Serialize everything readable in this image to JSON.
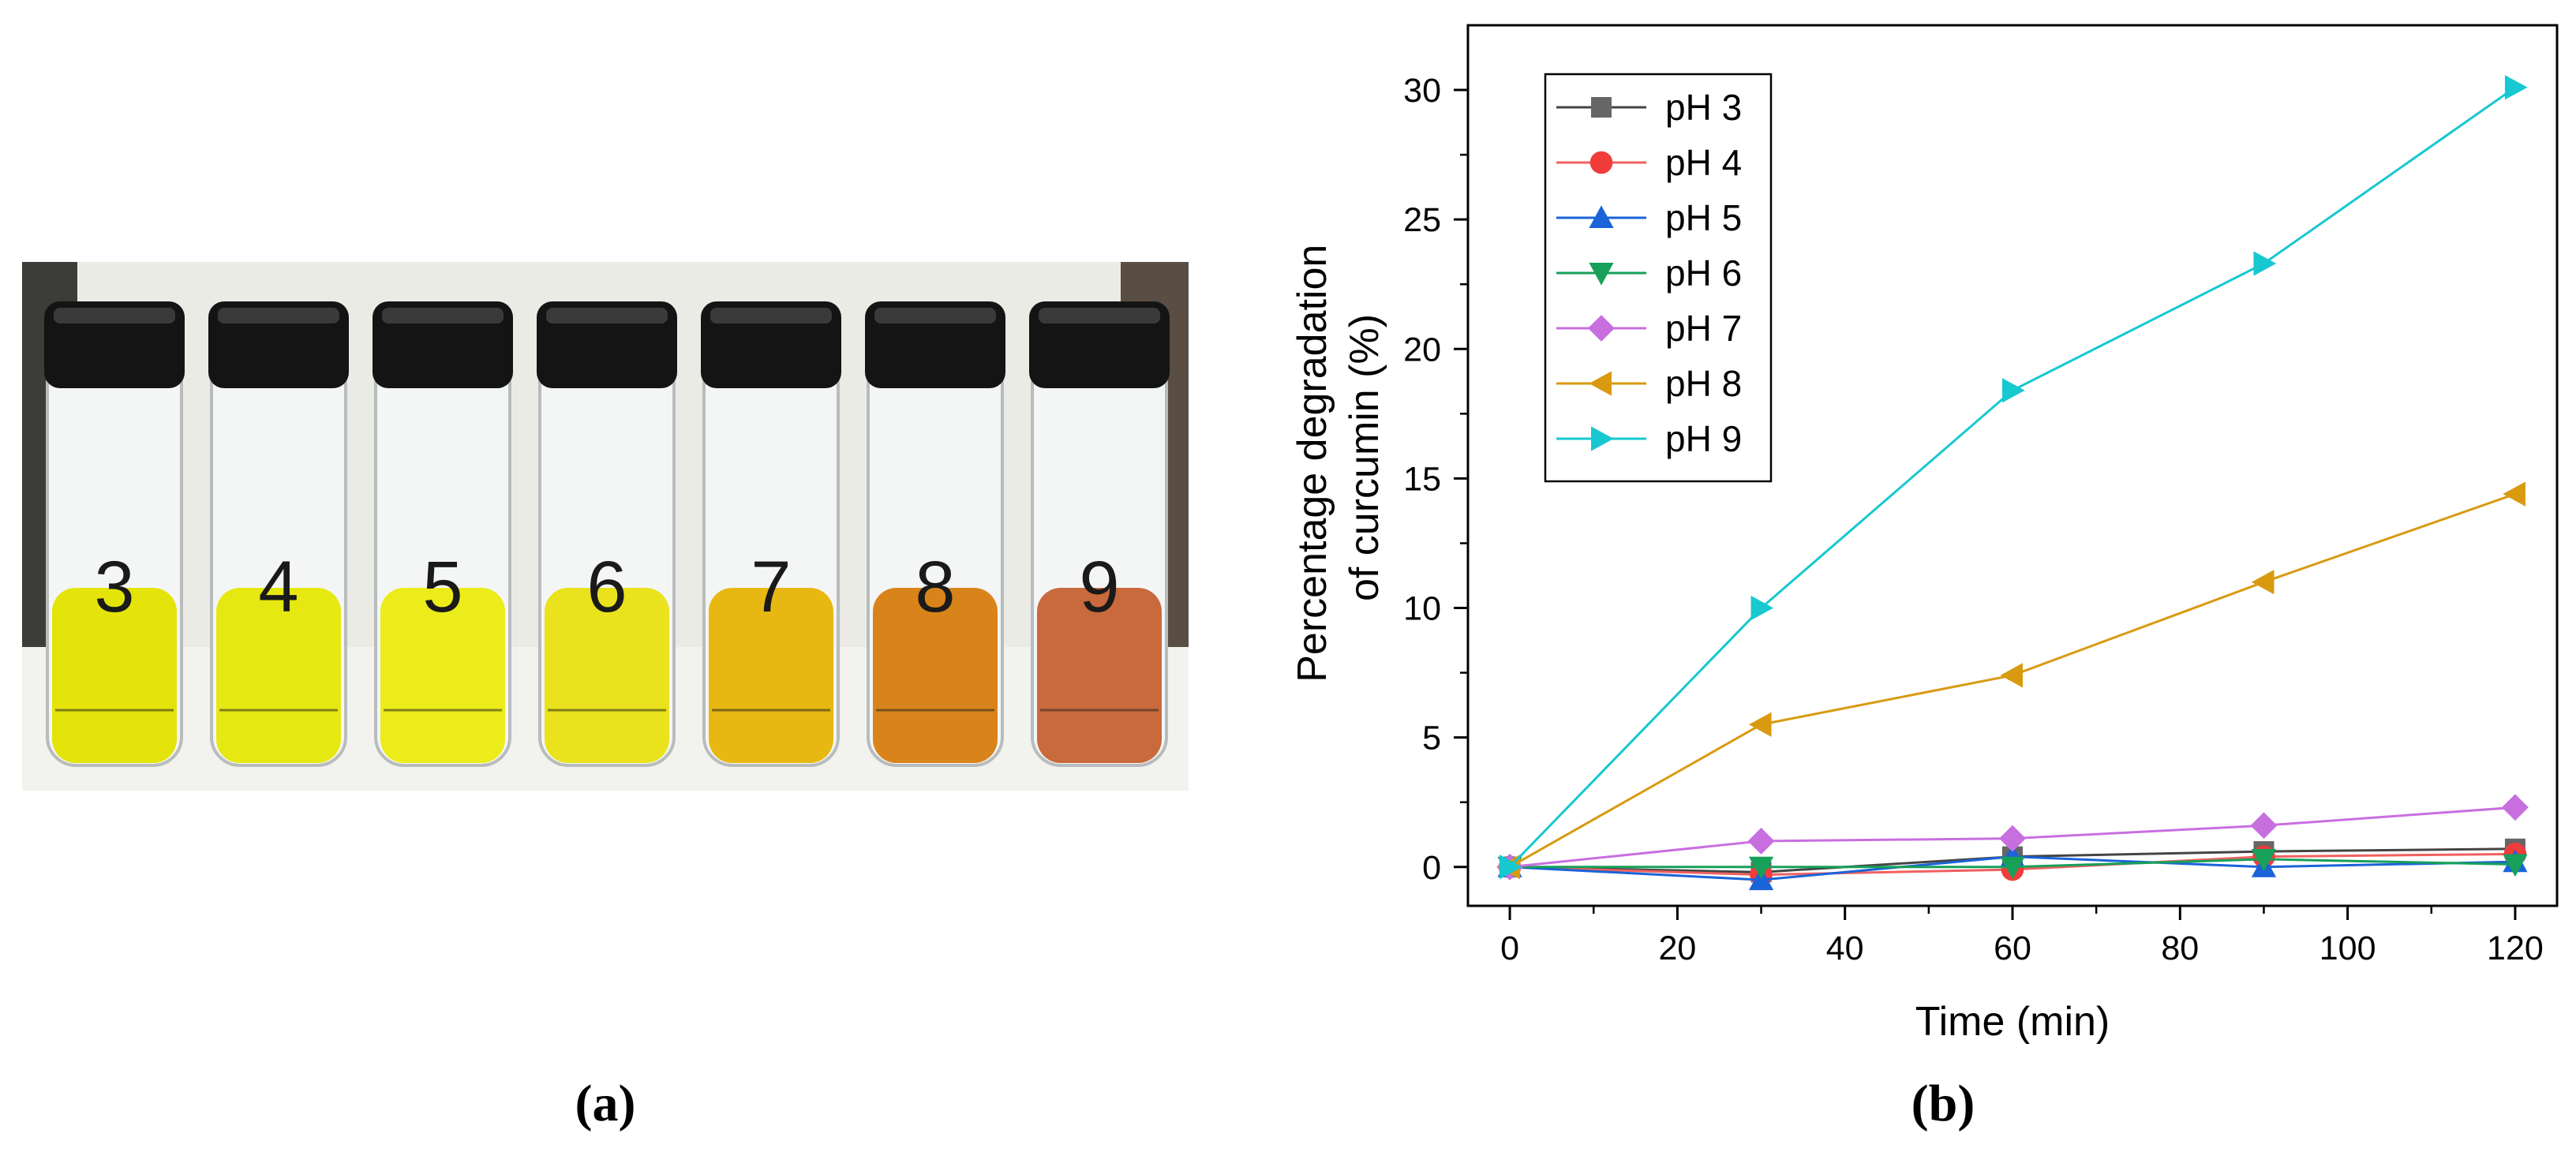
{
  "panel_a": {
    "label": "(a)",
    "vials": [
      {
        "number": "3",
        "color": "#e4e40a"
      },
      {
        "number": "4",
        "color": "#e6e812"
      },
      {
        "number": "5",
        "color": "#ecec1a"
      },
      {
        "number": "6",
        "color": "#e9e21c"
      },
      {
        "number": "7",
        "color": "#e8b812"
      },
      {
        "number": "8",
        "color": "#d9841a"
      },
      {
        "number": "9",
        "color": "#c96a3c"
      }
    ]
  },
  "panel_b": {
    "label": "(b)"
  },
  "chart_data": {
    "type": "line",
    "title": "",
    "xlabel": "Time (min)",
    "ylabel_lines": [
      "Percentage degradation",
      "of curcumin (%)"
    ],
    "xlim": [
      -5,
      125
    ],
    "ylim": [
      -1.5,
      32.5
    ],
    "xticks": [
      0,
      20,
      40,
      60,
      80,
      100,
      120
    ],
    "yticks": [
      0,
      5,
      10,
      15,
      20,
      25,
      30
    ],
    "legend_position": "top-left",
    "x": [
      0,
      30,
      60,
      90,
      120
    ],
    "series": [
      {
        "name": "pH 3",
        "marker": "square",
        "color": "#666666",
        "line_color": "#444444",
        "values": [
          0,
          -0.2,
          0.4,
          0.6,
          0.7
        ]
      },
      {
        "name": "pH 4",
        "marker": "circle",
        "color": "#f23c3c",
        "line_color": "#f06060",
        "values": [
          0,
          -0.3,
          -0.1,
          0.4,
          0.5
        ]
      },
      {
        "name": "pH 5",
        "marker": "triangle-up",
        "color": "#1a63d8",
        "line_color": "#1a63d8",
        "values": [
          0,
          -0.5,
          0.4,
          0.0,
          0.2
        ]
      },
      {
        "name": "pH 6",
        "marker": "triangle-down",
        "color": "#17a05a",
        "line_color": "#17a05a",
        "values": [
          0,
          0.0,
          0.0,
          0.3,
          0.1
        ]
      },
      {
        "name": "pH 7",
        "marker": "diamond",
        "color": "#c86fe0",
        "line_color": "#c86fe0",
        "values": [
          0,
          1.0,
          1.1,
          1.6,
          2.3
        ]
      },
      {
        "name": "pH 8",
        "marker": "triangle-left",
        "color": "#d99a10",
        "line_color": "#d99a10",
        "values": [
          0,
          5.5,
          7.4,
          11.0,
          14.4
        ]
      },
      {
        "name": "pH 9",
        "marker": "triangle-right",
        "color": "#17c8d0",
        "line_color": "#17c8d0",
        "values": [
          0,
          10.0,
          18.4,
          23.3,
          30.1
        ]
      }
    ]
  }
}
